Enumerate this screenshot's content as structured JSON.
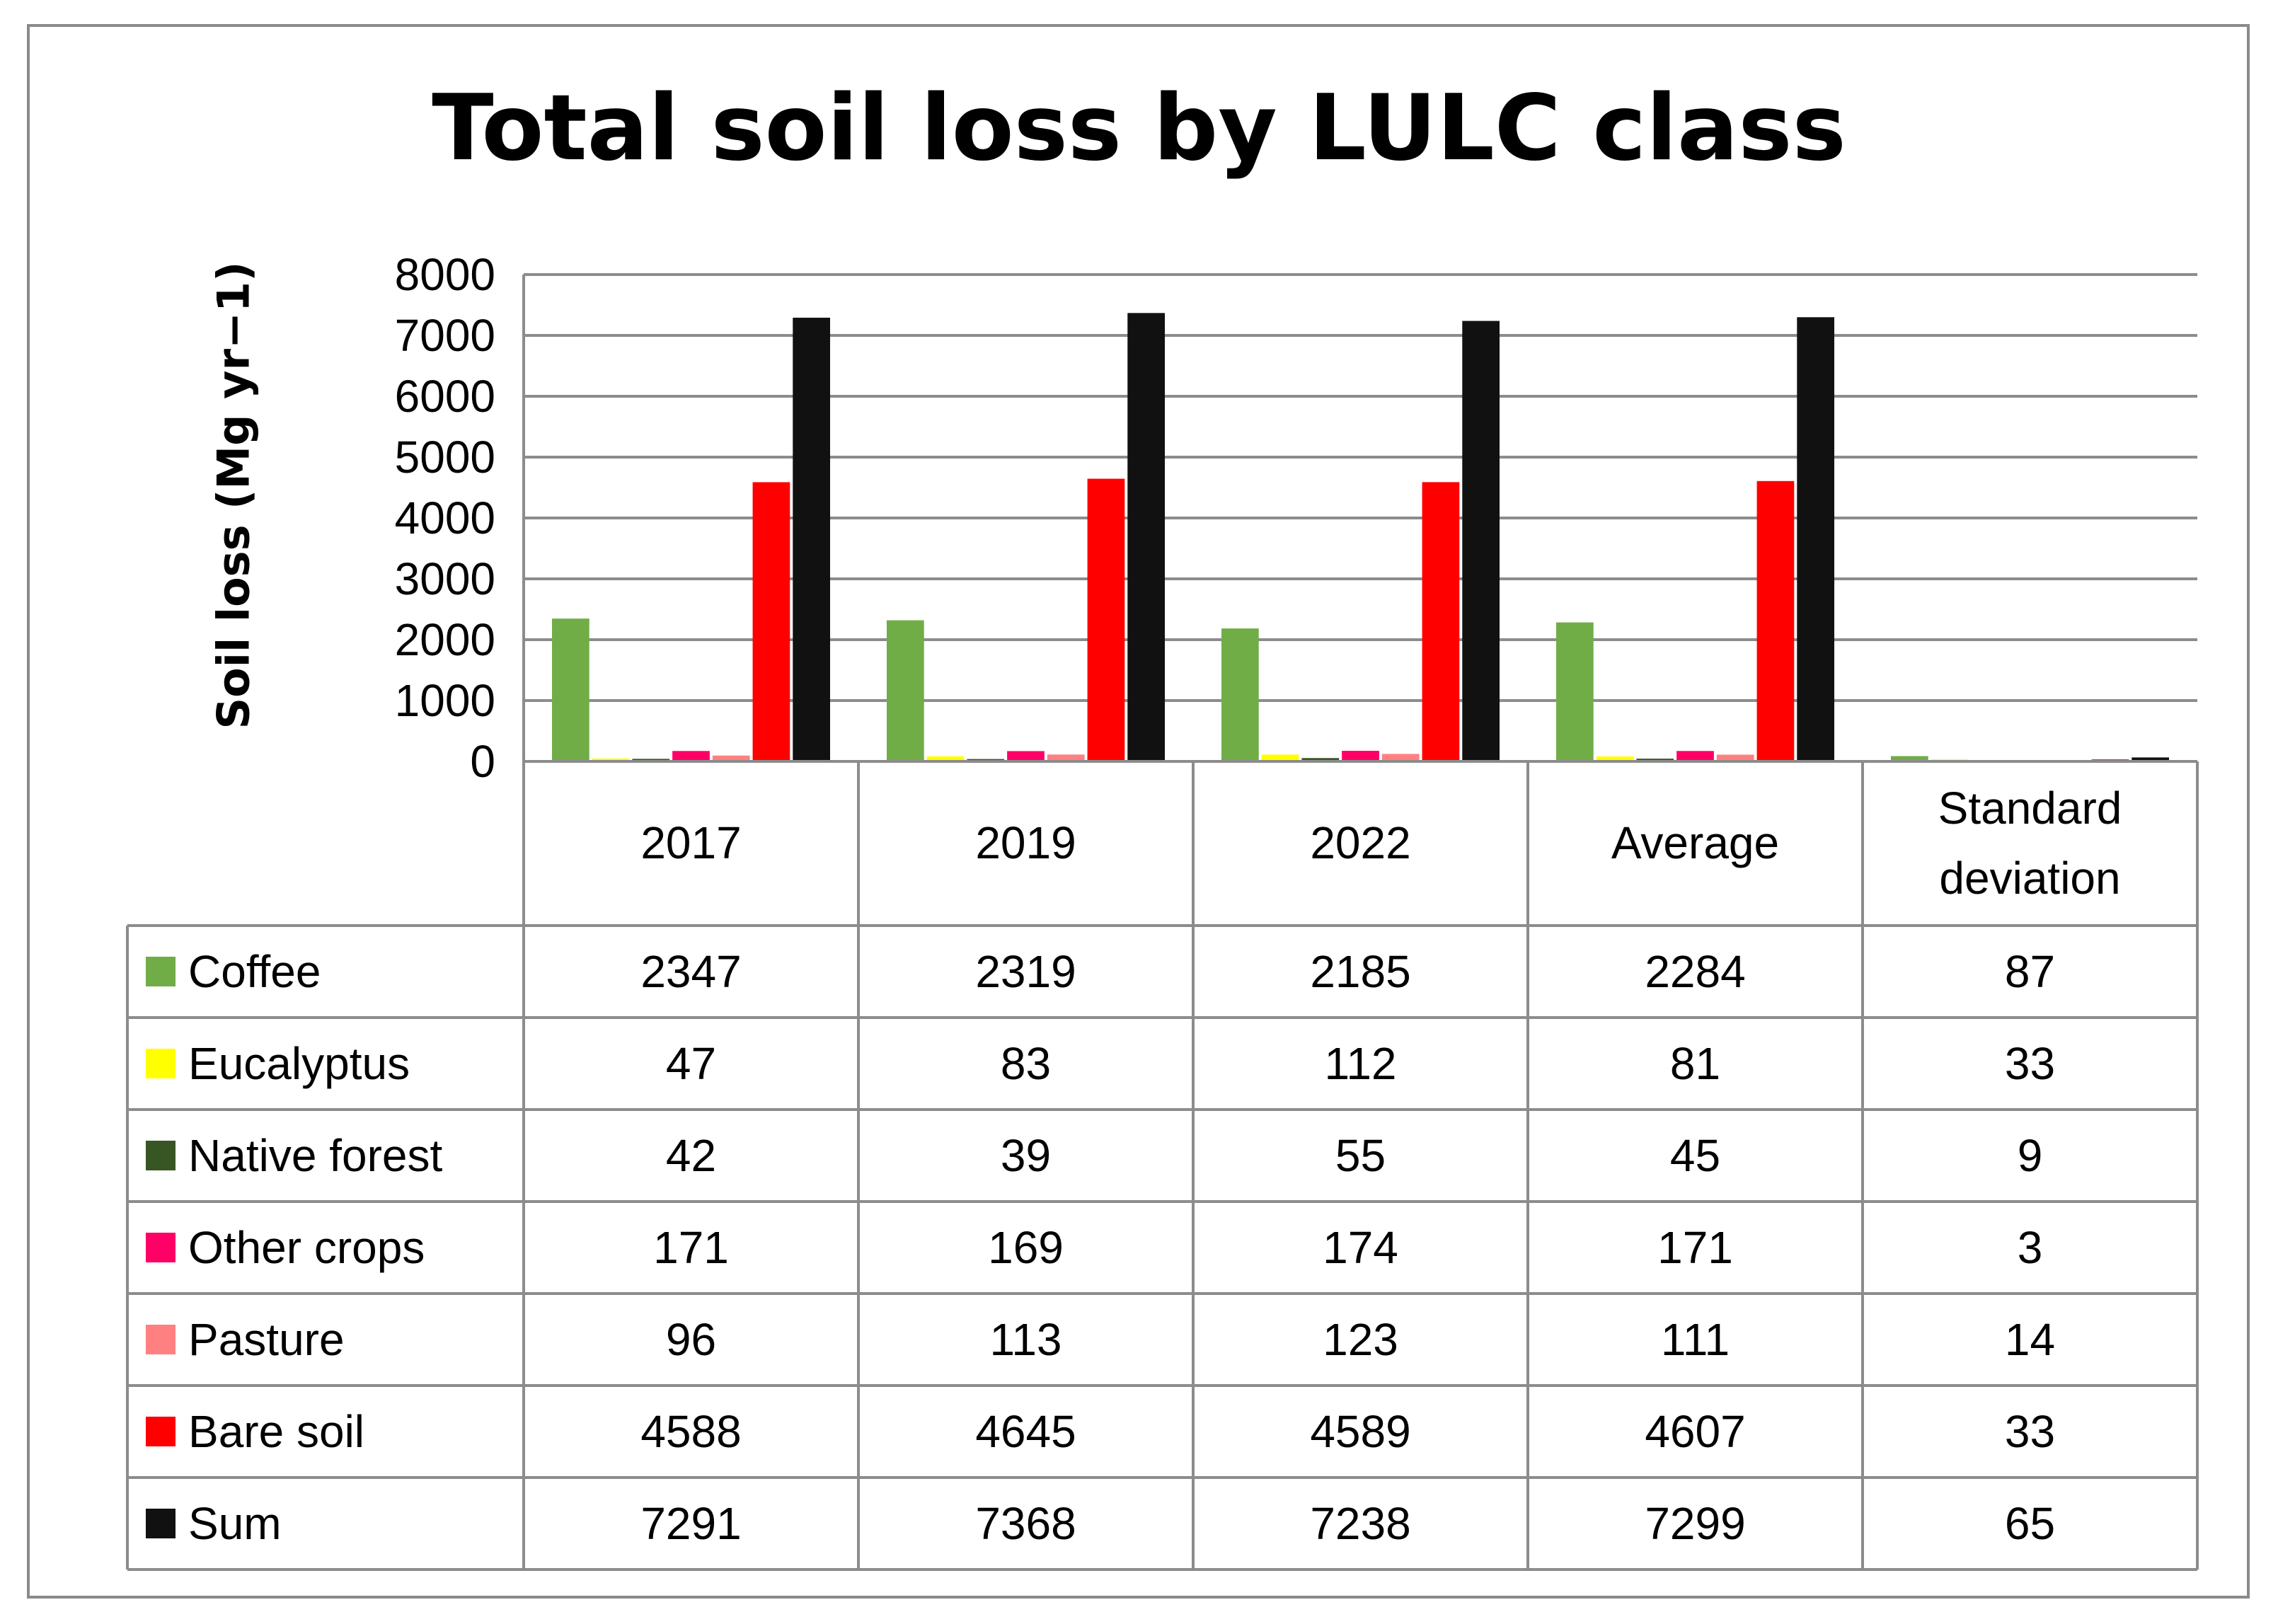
{
  "chart_data": {
    "type": "bar",
    "title": "Total soil loss by LULC class",
    "ylabel": "Soil loss (Mg yr−1)",
    "xlabel": "",
    "ylim": [
      0,
      8000
    ],
    "yticks": [
      "0",
      "1000",
      "2000",
      "3000",
      "4000",
      "5000",
      "6000",
      "7000",
      "8000"
    ],
    "grid": true,
    "legend": "data-table",
    "categories": [
      "2017",
      "2019",
      "2022",
      "Average",
      "Standard deviation"
    ],
    "series": [
      {
        "name": "Coffee",
        "color": "#70ad47",
        "values": [
          2347,
          2319,
          2185,
          2284,
          87
        ]
      },
      {
        "name": "Eucalyptus",
        "color": "#ffff00",
        "values": [
          47,
          83,
          112,
          81,
          33
        ]
      },
      {
        "name": "Native forest",
        "color": "#375623",
        "values": [
          42,
          39,
          55,
          45,
          9
        ]
      },
      {
        "name": "Other crops",
        "color": "#ff0066",
        "values": [
          171,
          169,
          174,
          171,
          3
        ]
      },
      {
        "name": "Pasture",
        "color": "#ff8080",
        "values": [
          96,
          113,
          123,
          111,
          14
        ]
      },
      {
        "name": "Bare soil",
        "color": "#ff0000",
        "values": [
          4588,
          4645,
          4589,
          4607,
          33
        ]
      },
      {
        "name": "Sum",
        "color": "#111111",
        "values": [
          7291,
          7368,
          7238,
          7299,
          65
        ]
      }
    ]
  }
}
